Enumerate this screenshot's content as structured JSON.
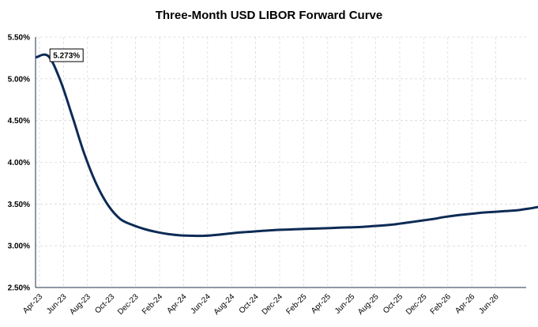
{
  "chart_data": {
    "type": "line",
    "title": "Three-Month USD LIBOR Forward Curve",
    "xlabel": "",
    "ylabel": "",
    "ylim": [
      2.5,
      5.5
    ],
    "y_ticks": [
      "2.50%",
      "3.00%",
      "3.50%",
      "4.00%",
      "4.50%",
      "5.00%",
      "5.50%"
    ],
    "x_ticks": [
      "Apr-23",
      "Jun-23",
      "Aug-23",
      "Oct-23",
      "Dec-23",
      "Feb-24",
      "Apr-24",
      "Jun-24",
      "Aug-24",
      "Oct-24",
      "Dec-24",
      "Feb-25",
      "Apr-25",
      "Jun-25",
      "Aug-25",
      "Oct-25",
      "Dec-25",
      "Feb-26",
      "Apr-26",
      "Jun-26"
    ],
    "grid": true,
    "series": [
      {
        "values": [
          5.26,
          5.273,
          4.98,
          4.55,
          4.1,
          3.74,
          3.48,
          3.32,
          3.25,
          3.2,
          3.165,
          3.14,
          3.125,
          3.12,
          3.12,
          3.13,
          3.145,
          3.16,
          3.17,
          3.18,
          3.19,
          3.195,
          3.2,
          3.205,
          3.21,
          3.215,
          3.22,
          3.225,
          3.235,
          3.245,
          3.26,
          3.28,
          3.3,
          3.32,
          3.345,
          3.365,
          3.38,
          3.395,
          3.405,
          3.415,
          3.425,
          3.445,
          3.47
        ],
        "color": "#0d2b55"
      }
    ],
    "annotations": [
      {
        "label": "5.273%",
        "index": 1
      }
    ]
  }
}
